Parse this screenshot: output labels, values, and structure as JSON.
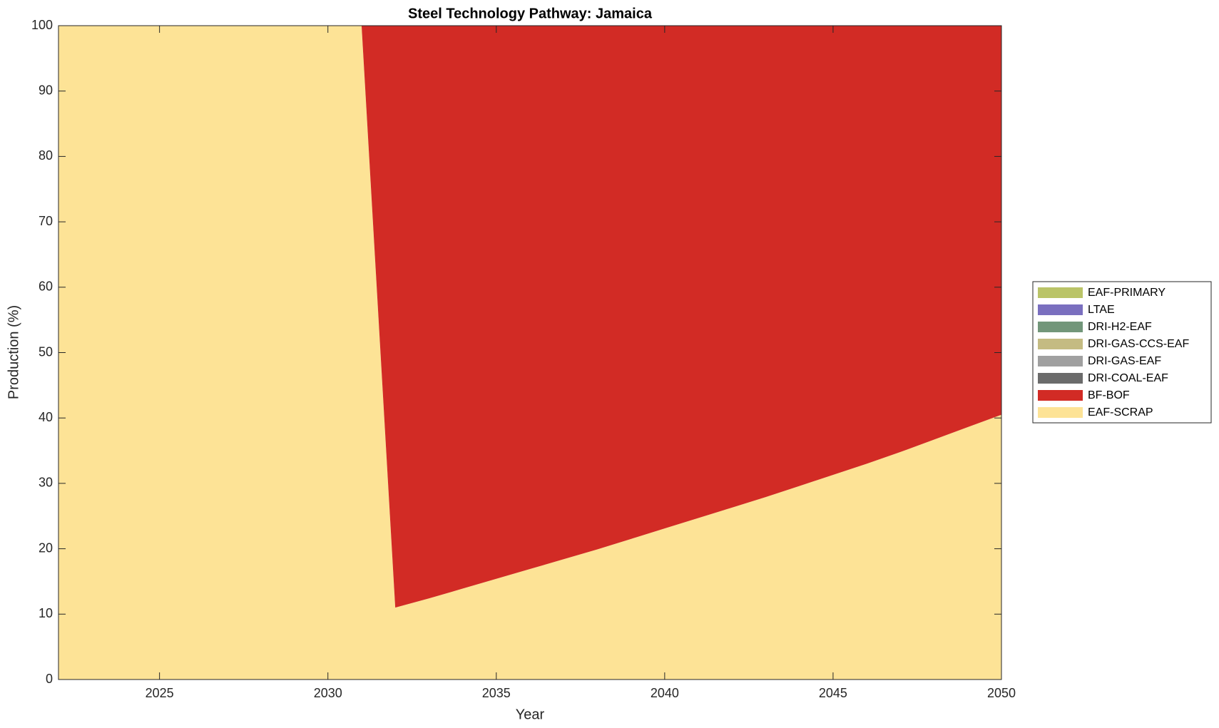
{
  "chart_data": {
    "type": "stacked_area",
    "title": "Steel Technology Pathway: Jamaica",
    "x_label": "Year",
    "y_label": "Production (%)",
    "x": [
      2022,
      2023,
      2024,
      2025,
      2026,
      2027,
      2028,
      2029,
      2030,
      2031,
      2032,
      2033,
      2034,
      2035,
      2036,
      2037,
      2038,
      2039,
      2040,
      2041,
      2042,
      2043,
      2044,
      2045,
      2046,
      2047,
      2048,
      2049,
      2050
    ],
    "xlim": [
      2022,
      2050
    ],
    "xticks": [
      2025,
      2030,
      2035,
      2040,
      2045,
      2050
    ],
    "ylim": [
      0,
      100
    ],
    "yticks": [
      0,
      10,
      20,
      30,
      40,
      50,
      60,
      70,
      80,
      90,
      100
    ],
    "legend": "right",
    "series": [
      {
        "name": "EAF-SCRAP",
        "color": "#fde396",
        "values": [
          100,
          100,
          100,
          100,
          100,
          100,
          100,
          100,
          100,
          100,
          11.0,
          12.4,
          13.9,
          15.4,
          16.9,
          18.4,
          19.9,
          21.5,
          23.1,
          24.7,
          26.3,
          27.9,
          29.6,
          31.3,
          33.0,
          34.8,
          36.7,
          38.6,
          40.5
        ]
      },
      {
        "name": "BF-BOF",
        "color": "#d22b25",
        "values": [
          0,
          0,
          0,
          0,
          0,
          0,
          0,
          0,
          0,
          0,
          89.0,
          87.6,
          86.1,
          84.6,
          83.1,
          81.6,
          80.1,
          78.5,
          76.9,
          75.3,
          73.7,
          72.1,
          70.4,
          68.7,
          67.0,
          65.2,
          63.3,
          61.4,
          59.5
        ]
      },
      {
        "name": "DRI-COAL-EAF",
        "color": "#6b6b6b",
        "values": [
          0,
          0,
          0,
          0,
          0,
          0,
          0,
          0,
          0,
          0,
          0,
          0,
          0,
          0,
          0,
          0,
          0,
          0,
          0,
          0,
          0,
          0,
          0,
          0,
          0,
          0,
          0,
          0,
          0
        ]
      },
      {
        "name": "DRI-GAS-EAF",
        "color": "#a0a0a0",
        "values": [
          0,
          0,
          0,
          0,
          0,
          0,
          0,
          0,
          0,
          0,
          0,
          0,
          0,
          0,
          0,
          0,
          0,
          0,
          0,
          0,
          0,
          0,
          0,
          0,
          0,
          0,
          0,
          0,
          0
        ]
      },
      {
        "name": "DRI-GAS-CCS-EAF",
        "color": "#c4bb82",
        "values": [
          0,
          0,
          0,
          0,
          0,
          0,
          0,
          0,
          0,
          0,
          0,
          0,
          0,
          0,
          0,
          0,
          0,
          0,
          0,
          0,
          0,
          0,
          0,
          0,
          0,
          0,
          0,
          0,
          0
        ]
      },
      {
        "name": "DRI-H2-EAF",
        "color": "#72967a",
        "values": [
          0,
          0,
          0,
          0,
          0,
          0,
          0,
          0,
          0,
          0,
          0,
          0,
          0,
          0,
          0,
          0,
          0,
          0,
          0,
          0,
          0,
          0,
          0,
          0,
          0,
          0,
          0,
          0,
          0
        ]
      },
      {
        "name": "LTAE",
        "color": "#7a6fbf",
        "values": [
          0,
          0,
          0,
          0,
          0,
          0,
          0,
          0,
          0,
          0,
          0,
          0,
          0,
          0,
          0,
          0,
          0,
          0,
          0,
          0,
          0,
          0,
          0,
          0,
          0,
          0,
          0,
          0,
          0
        ]
      },
      {
        "name": "EAF-PRIMARY",
        "color": "#bac468",
        "values": [
          0,
          0,
          0,
          0,
          0,
          0,
          0,
          0,
          0,
          0,
          0,
          0,
          0,
          0,
          0,
          0,
          0,
          0,
          0,
          0,
          0,
          0,
          0,
          0,
          0,
          0,
          0,
          0,
          0
        ]
      }
    ]
  }
}
